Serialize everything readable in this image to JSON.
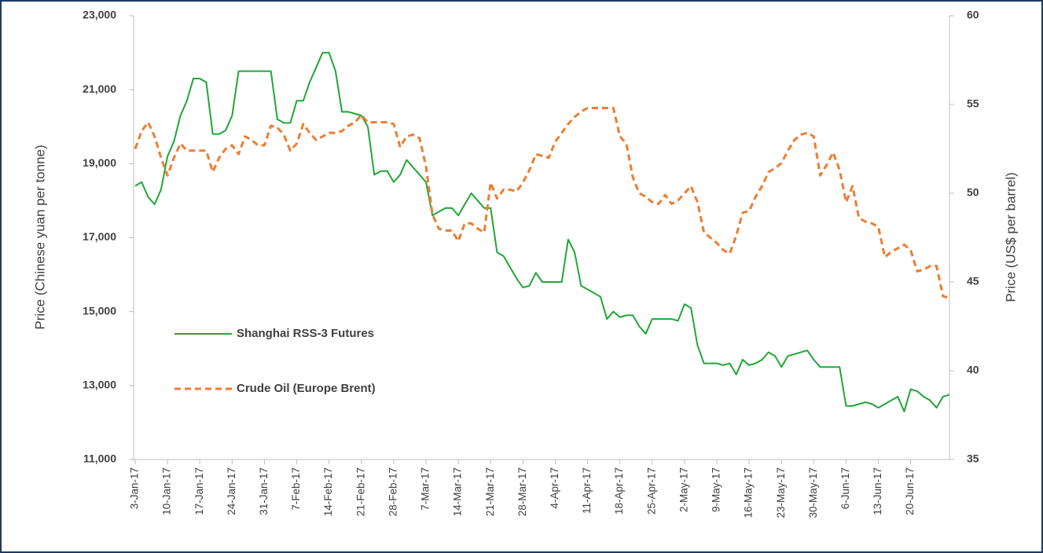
{
  "chart_data": {
    "type": "line",
    "y_label": "Price (Chinese yuan per tonne)",
    "y2_label": "Price (US$ per barrel)",
    "legend_position": "left",
    "categories": [
      "3-Jan-17",
      null,
      null,
      null,
      null,
      "10-Jan-17",
      null,
      null,
      null,
      null,
      "17-Jan-17",
      null,
      null,
      null,
      null,
      "24-Jan-17",
      null,
      null,
      null,
      null,
      "31-Jan-17",
      null,
      null,
      null,
      null,
      "7-Feb-17",
      null,
      null,
      null,
      null,
      "14-Feb-17",
      null,
      null,
      null,
      null,
      "21-Feb-17",
      null,
      null,
      null,
      null,
      "28-Feb-17",
      null,
      null,
      null,
      null,
      "7-Mar-17",
      null,
      null,
      null,
      null,
      "14-Mar-17",
      null,
      null,
      null,
      null,
      "21-Mar-17",
      null,
      null,
      null,
      null,
      "28-Mar-17",
      null,
      null,
      null,
      null,
      "4-Apr-17",
      null,
      null,
      null,
      null,
      "11-Apr-17",
      null,
      null,
      null,
      null,
      "18-Apr-17",
      null,
      null,
      null,
      null,
      "25-Apr-17",
      null,
      null,
      null,
      null,
      "2-May-17",
      null,
      null,
      null,
      null,
      "9-May-17",
      null,
      null,
      null,
      null,
      "16-May-17",
      null,
      null,
      null,
      null,
      "23-May-17",
      null,
      null,
      null,
      null,
      "30-May-17",
      null,
      null,
      null,
      null,
      "6-Jun-17",
      null,
      null,
      null,
      null,
      "13-Jun-17",
      null,
      null,
      null,
      null,
      "20-Jun-17",
      null,
      null,
      null,
      null,
      null,
      null
    ],
    "series": [
      {
        "name": "Shanghai RSS-3 Futures",
        "color": "#21a637",
        "dashed": false,
        "axis": "y",
        "values": [
          18400,
          18500,
          18100,
          17900,
          18300,
          19200,
          19600,
          20300,
          20700,
          21300,
          21300,
          21200,
          19800,
          19800,
          19900,
          20300,
          21500,
          21500,
          21500,
          21500,
          21500,
          21500,
          20200,
          20100,
          20100,
          20700,
          20700,
          21200,
          21600,
          22000,
          22000,
          21500,
          20400,
          20400,
          20350,
          20300,
          20000,
          18700,
          18800,
          18800,
          18500,
          18700,
          19100,
          18900,
          18700,
          18500,
          17600,
          17700,
          17800,
          17800,
          17600,
          17900,
          18200,
          18000,
          17800,
          17800,
          16600,
          16500,
          16200,
          15900,
          15650,
          15700,
          16050,
          15800,
          15800,
          15800,
          15800,
          16950,
          16600,
          15700,
          15600,
          15500,
          15400,
          14800,
          15000,
          14850,
          14900,
          14900,
          14600,
          14400,
          14800,
          14800,
          14800,
          14800,
          14750,
          15200,
          15100,
          14100,
          13600,
          13600,
          13600,
          13550,
          13600,
          13300,
          13700,
          13550,
          13600,
          13700,
          13900,
          13800,
          13500,
          13800,
          13850,
          13900,
          13950,
          13700,
          13500,
          13500,
          13500,
          13500,
          12450,
          12450,
          12500,
          12550,
          12500,
          12400,
          12500,
          12600,
          12700,
          12300,
          12900,
          12850,
          12700,
          12600,
          12400,
          12700,
          12750
        ]
      },
      {
        "name": "Crude Oil (Europe Brent)",
        "color": "#ed7d31",
        "dashed": true,
        "axis": "y2",
        "values": [
          52.5,
          53.5,
          54.0,
          53.2,
          52.0,
          51.0,
          52.0,
          52.8,
          52.4,
          52.4,
          52.4,
          52.4,
          51.2,
          52.0,
          52.5,
          52.7,
          52.2,
          53.2,
          53.0,
          52.7,
          52.7,
          53.8,
          53.7,
          53.3,
          52.4,
          52.8,
          53.9,
          53.4,
          53.0,
          53.2,
          53.4,
          53.4,
          53.5,
          53.8,
          54.0,
          54.4,
          54.0,
          54.0,
          54.0,
          54.0,
          53.9,
          52.6,
          53.2,
          53.3,
          53.1,
          51.5,
          48.8,
          48.0,
          47.9,
          47.9,
          47.3,
          48.3,
          48.3,
          48.0,
          47.8,
          50.6,
          49.7,
          50.2,
          50.2,
          50.1,
          50.6,
          51.3,
          52.2,
          52.1,
          52.0,
          52.9,
          53.4,
          53.9,
          54.3,
          54.6,
          54.8,
          54.8,
          54.8,
          54.8,
          54.8,
          53.2,
          52.8,
          50.9,
          50.0,
          49.8,
          49.5,
          49.4,
          49.9,
          49.4,
          49.6,
          50.0,
          50.4,
          49.5,
          47.8,
          47.5,
          47.2,
          46.8,
          46.6,
          47.6,
          48.9,
          49.0,
          49.8,
          50.4,
          51.2,
          51.4,
          51.7,
          52.4,
          53.0,
          53.3,
          53.4,
          53.2,
          51.0,
          51.6,
          52.3,
          51.3,
          49.5,
          50.4,
          48.6,
          48.4,
          48.3,
          48.1,
          46.4,
          46.7,
          46.9,
          47.1,
          46.8,
          45.6,
          45.7,
          45.9,
          45.9,
          44.2,
          44.1
        ]
      }
    ],
    "ylim": [
      11000,
      23000
    ],
    "yticks": [
      {
        "value": 11000,
        "label": "11,000"
      },
      {
        "value": 13000,
        "label": "13,000"
      },
      {
        "value": 15000,
        "label": "15,000"
      },
      {
        "value": 17000,
        "label": "17,000"
      },
      {
        "value": 19000,
        "label": "19,000"
      },
      {
        "value": 21000,
        "label": "21,000"
      },
      {
        "value": 23000,
        "label": "23,000"
      }
    ],
    "y2lim": [
      35,
      60
    ],
    "y2ticks": [
      35,
      40,
      45,
      50,
      55,
      60
    ]
  }
}
